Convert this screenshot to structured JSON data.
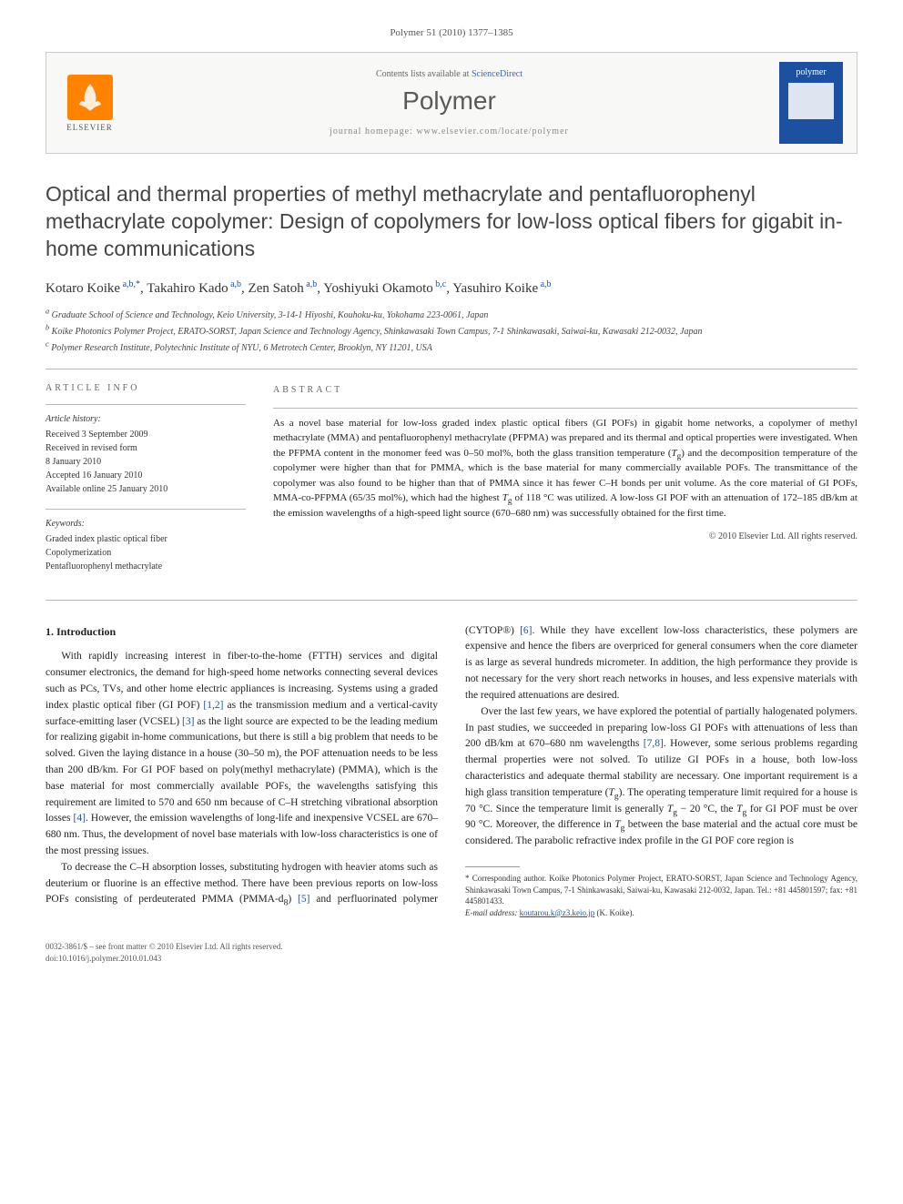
{
  "journal_ref": "Polymer 51 (2010) 1377–1385",
  "header": {
    "elsevier_label": "ELSEVIER",
    "contents_prefix": "Contents lists available at ",
    "contents_link": "ScienceDirect",
    "journal_name": "Polymer",
    "homepage_prefix": "journal homepage: ",
    "homepage_url": "www.elsevier.com/locate/polymer",
    "cover_text": "polymer"
  },
  "title": "Optical and thermal properties of methyl methacrylate and pentafluorophenyl methacrylate copolymer: Design of copolymers for low-loss optical fibers for gigabit in-home communications",
  "authors": [
    {
      "name": "Kotaro Koike",
      "sup": "a,b,*"
    },
    {
      "name": "Takahiro Kado",
      "sup": "a,b"
    },
    {
      "name": "Zen Satoh",
      "sup": "a,b"
    },
    {
      "name": "Yoshiyuki Okamoto",
      "sup": "b,c"
    },
    {
      "name": "Yasuhiro Koike",
      "sup": "a,b"
    }
  ],
  "affiliations": [
    {
      "sup": "a",
      "text": "Graduate School of Science and Technology, Keio University, 3-14-1 Hiyoshi, Kouhoku-ku, Yokohama 223-0061, Japan"
    },
    {
      "sup": "b",
      "text": "Koike Photonics Polymer Project, ERATO-SORST, Japan Science and Technology Agency, Shinkawasaki Town Campus, 7-1 Shinkawasaki, Saiwai-ku, Kawasaki 212-0032, Japan"
    },
    {
      "sup": "c",
      "text": "Polymer Research Institute, Polytechnic Institute of NYU, 6 Metrotech Center, Brooklyn, NY 11201, USA"
    }
  ],
  "article_info": {
    "head": "ARTICLE INFO",
    "history_label": "Article history:",
    "history": [
      "Received 3 September 2009",
      "Received in revised form",
      "8 January 2010",
      "Accepted 16 January 2010",
      "Available online 25 January 2010"
    ],
    "keywords_label": "Keywords:",
    "keywords": [
      "Graded index plastic optical fiber",
      "Copolymerization",
      "Pentafluorophenyl methacrylate"
    ]
  },
  "abstract": {
    "head": "ABSTRACT",
    "text": "As a novel base material for low-loss graded index plastic optical fibers (GI POFs) in gigabit home networks, a copolymer of methyl methacrylate (MMA) and pentafluorophenyl methacrylate (PFPMA) was prepared and its thermal and optical properties were investigated. When the PFPMA content in the monomer feed was 0–50 mol%, both the glass transition temperature (Tg) and the decomposition temperature of the copolymer were higher than that for PMMA, which is the base material for many commercially available POFs. The transmittance of the copolymer was also found to be higher than that of PMMA since it has fewer C–H bonds per unit volume. As the core material of GI POFs, MMA-co-PFPMA (65/35 mol%), which had the highest Tg of 118 °C was utilized. A low-loss GI POF with an attenuation of 172–185 dB/km at the emission wavelengths of a high-speed light source (670–680 nm) was successfully obtained for the first time.",
    "copyright": "© 2010 Elsevier Ltd. All rights reserved."
  },
  "body": {
    "section_head": "1. Introduction",
    "p1": "With rapidly increasing interest in fiber-to-the-home (FTTH) services and digital consumer electronics, the demand for high-speed home networks connecting several devices such as PCs, TVs, and other home electric appliances is increasing. Systems using a graded index plastic optical fiber (GI POF) [1,2] as the transmission medium and a vertical-cavity surface-emitting laser (VCSEL) [3] as the light source are expected to be the leading medium for realizing gigabit in-home communications, but there is still a big problem that needs to be solved. Given the laying distance in a house (30–50 m), the POF attenuation needs to be less than 200 dB/km. For GI POF based on poly(methyl methacrylate) (PMMA), which is the base material for most commercially available POFs, the wavelengths satisfying this requirement are limited to 570 and 650 nm because of C–H stretching vibrational absorption losses [4]. However, the emission wavelengths of long-life and inexpensive VCSEL are 670–680 nm. Thus, the development of novel base materials with low-loss characteristics is one of the most pressing issues.",
    "p2": "To decrease the C–H absorption losses, substituting hydrogen with heavier atoms such as deuterium or fluorine is an effective method. There have been previous reports on low-loss POFs consisting of perdeuterated PMMA (PMMA-d8) [5] and perfluorinated polymer (CYTOP®) [6]. While they have excellent low-loss characteristics, these polymers are expensive and hence the fibers are overpriced for general consumers when the core diameter is as large as several hundreds micrometer. In addition, the high performance they provide is not necessary for the very short reach networks in houses, and less expensive materials with the required attenuations are desired.",
    "p3": "Over the last few years, we have explored the potential of partially halogenated polymers. In past studies, we succeeded in preparing low-loss GI POFs with attenuations of less than 200 dB/km at 670–680 nm wavelengths [7,8]. However, some serious problems regarding thermal properties were not solved. To utilize GI POFs in a house, both low-loss characteristics and adequate thermal stability are necessary. One important requirement is a high glass transition temperature (Tg). The operating temperature limit required for a house is 70 °C. Since the temperature limit is generally Tg − 20 °C, the Tg for GI POF must be over 90 °C. Moreover, the difference in Tg between the base material and the actual core must be considered. The parabolic refractive index profile in the GI POF core region is"
  },
  "footnote": {
    "text": "* Corresponding author. Koike Photonics Polymer Project, ERATO-SORST, Japan Science and Technology Agency, Shinkawasaki Town Campus, 7-1 Shinkawasaki, Saiwai-ku, Kawasaki 212-0032, Japan. Tel.: +81 445801597; fax: +81 445801433.",
    "email_label": "E-mail address: ",
    "email": "koutarou.k@z3.keio.jp",
    "email_suffix": " (K. Koike)."
  },
  "footer": {
    "line1": "0032-3861/$ – see front matter © 2010 Elsevier Ltd. All rights reserved.",
    "line2": "doi:10.1016/j.polymer.2010.01.043"
  }
}
